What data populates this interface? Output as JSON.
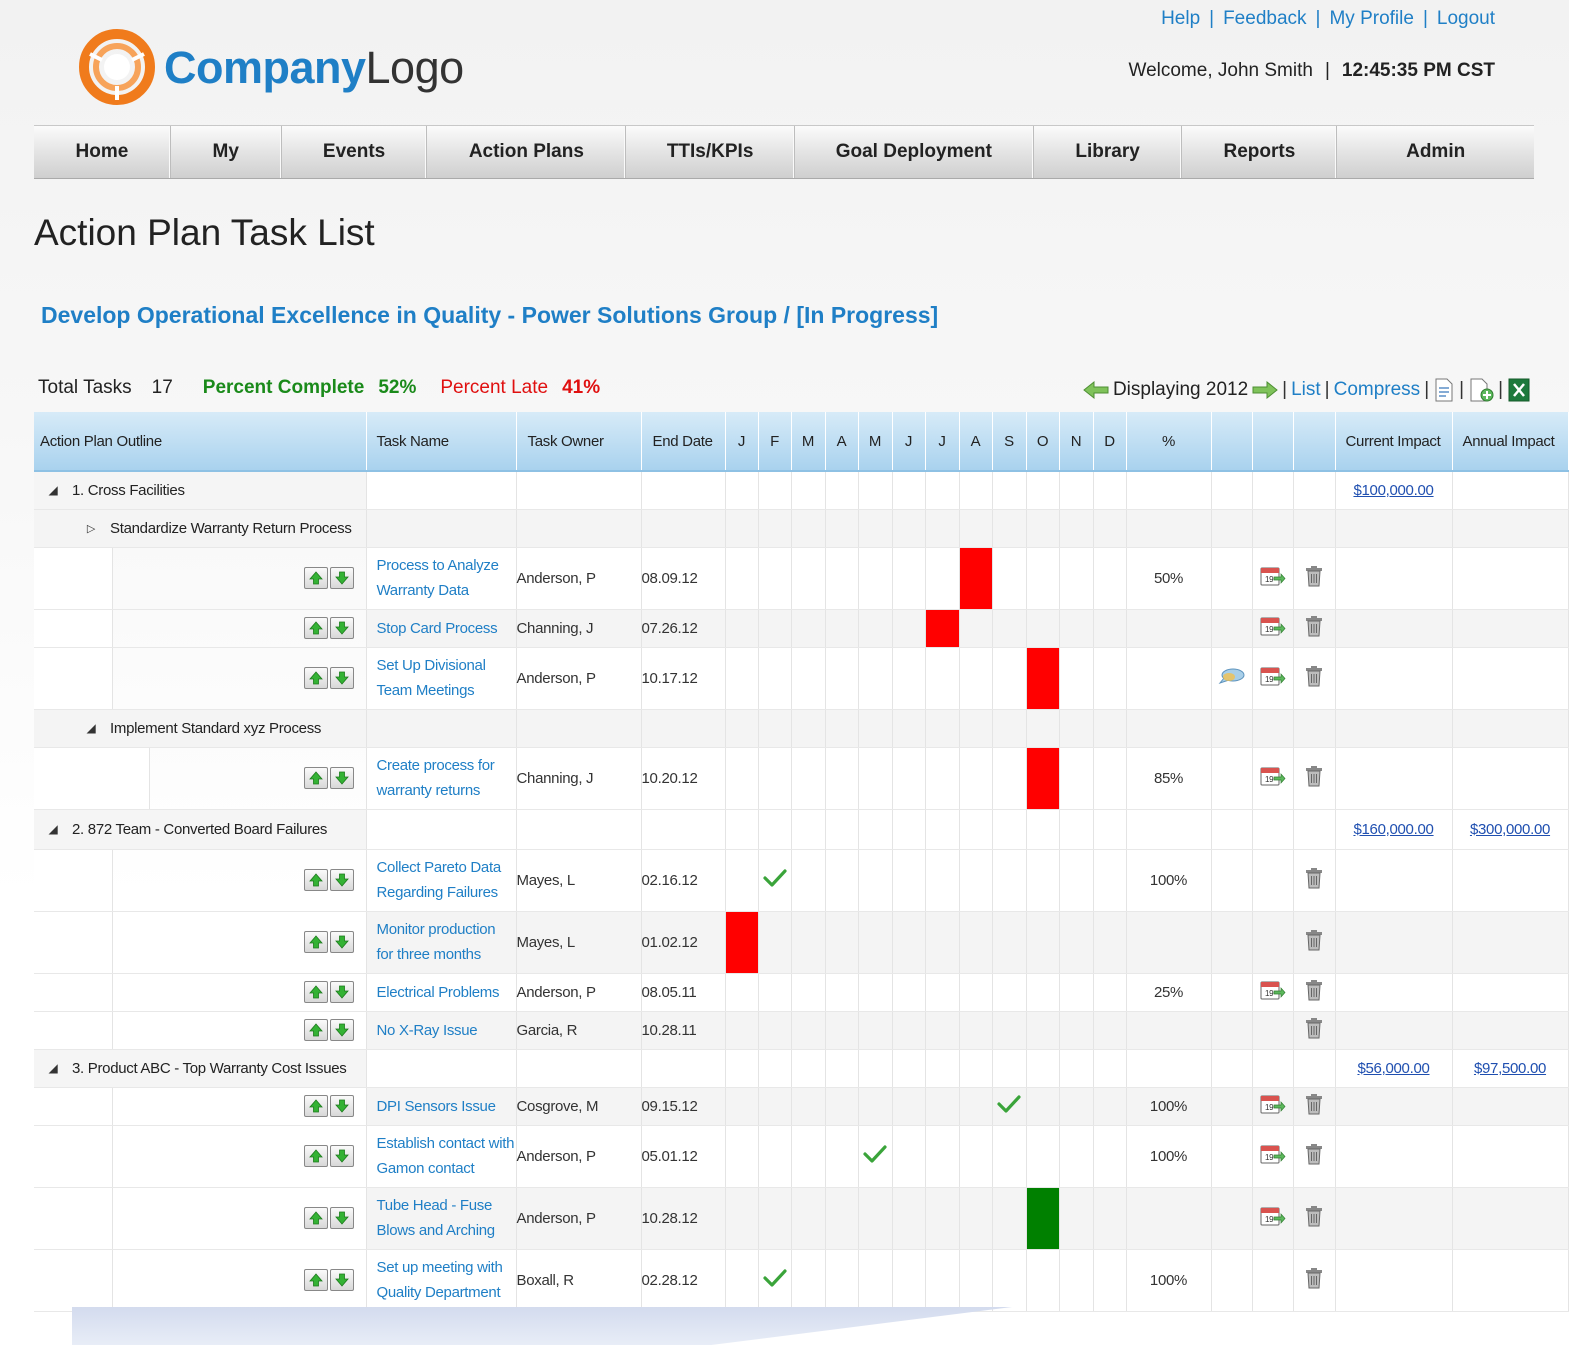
{
  "brand": {
    "logo_bold": "Company",
    "logo_light": "Logo",
    "accent": "#1f7fc6",
    "logo_ring": "#f07b1c"
  },
  "top_links": {
    "help": "Help",
    "feedback": "Feedback",
    "profile": "My Profile",
    "logout": "Logout"
  },
  "welcome": {
    "text": "Welcome, John Smith",
    "time": "12:45:35 PM CST"
  },
  "nav": [
    "Home",
    "My",
    "Events",
    "Action Plans",
    "TTIs/KPIs",
    "Goal Deployment",
    "Library",
    "Reports",
    "Admin"
  ],
  "page_title": "Action Plan Task List",
  "plan_title": "Develop Operational Excellence in Quality - Power Solutions Group / [In Progress]",
  "summary": {
    "total_label": "Total Tasks",
    "total_value": "17",
    "complete_label": "Percent Complete",
    "complete_value": "52%",
    "late_label": "Percent Late",
    "late_value": "41%"
  },
  "viewbar": {
    "displaying": "Displaying 2012",
    "list": "List",
    "compress": "Compress"
  },
  "columns": {
    "outline": "Action Plan Outline",
    "task": "Task Name",
    "owner": "Task Owner",
    "end": "End Date",
    "months": [
      "J",
      "F",
      "M",
      "A",
      "M",
      "J",
      "J",
      "A",
      "S",
      "O",
      "N",
      "D"
    ],
    "pct": "%",
    "current": "Current Impact",
    "annual": "Annual Impact"
  },
  "status_colors": {
    "late": "#ff0000",
    "on_track": "#008000",
    "check": "#3aa43a"
  },
  "rows": [
    {
      "type": "section",
      "text": "1. Cross Facilities",
      "expanded": true,
      "current": "$100,000.00",
      "annual": ""
    },
    {
      "type": "sub",
      "text": "Standardize Warranty Return Process",
      "expanded": false
    },
    {
      "type": "task",
      "indent": 1,
      "name": "Process to Analyze Warranty Data",
      "owner": "Anderson, P",
      "end": "08.09.12",
      "bar_month": 8,
      "bar": "late",
      "pct": "50%",
      "cal": true,
      "chat": false,
      "trash": true
    },
    {
      "type": "task",
      "indent": 1,
      "name": "Stop Card Process",
      "owner": "Channing, J",
      "end": "07.26.12",
      "bar_month": 7,
      "bar": "late",
      "pct": "",
      "cal": true,
      "chat": false,
      "trash": true
    },
    {
      "type": "task",
      "indent": 1,
      "name": "Set Up Divisional Team Meetings",
      "owner": "Anderson, P",
      "end": "10.17.12",
      "bar_month": 10,
      "bar": "late",
      "pct": "",
      "cal": true,
      "chat": true,
      "trash": true
    },
    {
      "type": "sub",
      "text": "Implement Standard xyz Process",
      "expanded": true
    },
    {
      "type": "task",
      "indent": 2,
      "name": "Create process for warranty returns",
      "owner": "Channing, J",
      "end": "10.20.12",
      "bar_month": 10,
      "bar": "late",
      "pct": "85%",
      "cal": true,
      "chat": false,
      "trash": true
    },
    {
      "type": "section",
      "text": "2. 872 Team - Converted Board Failures",
      "expanded": true,
      "current": "$160,000.00",
      "annual": "$300,000.00"
    },
    {
      "type": "task",
      "indent": 1,
      "name": "Collect Pareto Data Regarding Failures",
      "owner": "Mayes, L",
      "end": "02.16.12",
      "check_month": 2,
      "pct": "100%",
      "cal": false,
      "chat": false,
      "trash": true
    },
    {
      "type": "task",
      "indent": 1,
      "name": "Monitor production for three months",
      "owner": "Mayes, L",
      "end": "01.02.12",
      "bar_month": 1,
      "bar": "late",
      "pct": "",
      "cal": false,
      "chat": false,
      "trash": true
    },
    {
      "type": "task",
      "indent": 1,
      "name": "Electrical Problems",
      "owner": "Anderson, P",
      "end": "08.05.11",
      "pct": "25%",
      "cal": true,
      "chat": false,
      "trash": true
    },
    {
      "type": "task",
      "indent": 1,
      "name": "No X-Ray Issue",
      "owner": "Garcia, R",
      "end": "10.28.11",
      "pct": "",
      "cal": false,
      "chat": false,
      "trash": true
    },
    {
      "type": "section",
      "text": "3. Product ABC - Top Warranty Cost Issues",
      "expanded": true,
      "current": "$56,000.00",
      "annual": "$97,500.00"
    },
    {
      "type": "task",
      "indent": 1,
      "name": "DPI Sensors Issue",
      "owner": "Cosgrove, M",
      "end": "09.15.12",
      "check_month": 9,
      "pct": "100%",
      "cal": true,
      "chat": false,
      "trash": true
    },
    {
      "type": "task",
      "indent": 1,
      "name": "Establish contact with Gamon contact",
      "owner": "Anderson, P",
      "end": "05.01.12",
      "check_month": 5,
      "pct": "100%",
      "cal": true,
      "chat": false,
      "trash": true
    },
    {
      "type": "task",
      "indent": 1,
      "name": "Tube Head - Fuse Blows and Arching",
      "owner": "Anderson, P",
      "end": "10.28.12",
      "bar_month": 10,
      "bar": "on_track",
      "pct": "",
      "cal": true,
      "chat": false,
      "trash": true
    },
    {
      "type": "task",
      "indent": 1,
      "name": "Set up meeting with Quality Department",
      "owner": "Boxall, R",
      "end": "02.28.12",
      "check_month": 2,
      "pct": "100%",
      "cal": false,
      "chat": false,
      "trash": true
    }
  ]
}
